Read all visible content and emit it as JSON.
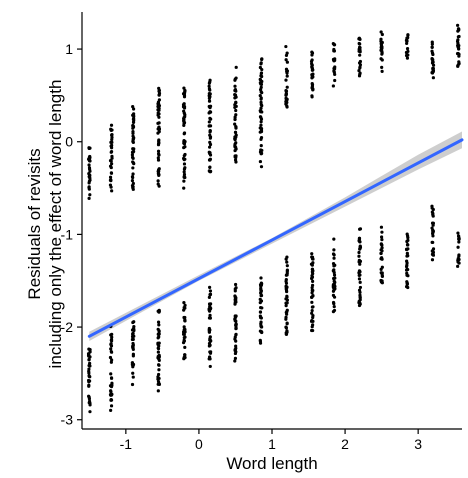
{
  "chart_data": {
    "type": "scatter",
    "xlabel": "Word length",
    "ylabel_lines": [
      "Residuals of revisits",
      "including only the effect of word length"
    ],
    "xlim": [
      -1.6,
      3.6
    ],
    "ylim": [
      -3.1,
      1.4
    ],
    "x_ticks": [
      -1,
      0,
      1,
      2,
      3
    ],
    "y_ticks": [
      -3,
      -2,
      -1,
      0,
      1
    ],
    "x_tick_labels": [
      "-1",
      "0",
      "1",
      "2",
      "3"
    ],
    "y_tick_labels": [
      "-3",
      "-2",
      "-1",
      "0",
      "1"
    ],
    "grid": false,
    "legend": "none",
    "colors": {
      "points": "#000000",
      "fit_line": "#3366ff",
      "confidence_band": "#bdbdbd",
      "axis": "#000000"
    },
    "point_columns": [
      {
        "x": -1.5,
        "bands": [
          [
            -0.65,
            0.05
          ],
          [
            -3.0,
            -2.15
          ]
        ]
      },
      {
        "x": -1.2,
        "bands": [
          [
            -0.55,
            0.25
          ],
          [
            -2.9,
            -1.95
          ]
        ]
      },
      {
        "x": -0.9,
        "bands": [
          [
            -0.65,
            0.5
          ],
          [
            -2.65,
            -1.85
          ]
        ]
      },
      {
        "x": -0.55,
        "bands": [
          [
            -0.55,
            0.72
          ],
          [
            -2.75,
            -1.7
          ]
        ]
      },
      {
        "x": -0.2,
        "bands": [
          [
            -0.55,
            0.72
          ],
          [
            -2.45,
            -1.65
          ]
        ]
      },
      {
        "x": 0.15,
        "bands": [
          [
            -0.45,
            0.8
          ],
          [
            -2.45,
            -1.5
          ]
        ]
      },
      {
        "x": 0.5,
        "bands": [
          [
            -0.35,
            0.85
          ],
          [
            -2.5,
            -1.45
          ]
        ]
      },
      {
        "x": 0.85,
        "bands": [
          [
            -0.3,
            1.05
          ],
          [
            -2.3,
            -1.4
          ]
        ]
      },
      {
        "x": 1.2,
        "bands": [
          [
            0.3,
            1.05
          ],
          [
            -2.2,
            -1.15
          ]
        ]
      },
      {
        "x": 1.55,
        "bands": [
          [
            0.4,
            1.1
          ],
          [
            -2.15,
            -1.1
          ]
        ]
      },
      {
        "x": 1.85,
        "bands": [
          [
            0.6,
            1.1
          ],
          [
            -1.95,
            -1.05
          ]
        ]
      },
      {
        "x": 2.2,
        "bands": [
          [
            0.65,
            1.2
          ],
          [
            -1.85,
            -0.9
          ]
        ]
      },
      {
        "x": 2.5,
        "bands": [
          [
            0.75,
            1.25
          ],
          [
            -1.6,
            -0.9
          ]
        ]
      },
      {
        "x": 2.85,
        "bands": [
          [
            0.85,
            1.2
          ],
          [
            -1.65,
            -0.9
          ]
        ]
      },
      {
        "x": 3.2,
        "bands": [
          [
            0.6,
            1.2
          ],
          [
            -1.3,
            -0.6
          ]
        ]
      },
      {
        "x": 3.55,
        "bands": [
          [
            0.75,
            1.35
          ],
          [
            -1.35,
            -0.95
          ]
        ]
      }
    ],
    "fit_line": {
      "x": [
        -1.5,
        3.6
      ],
      "y": [
        -2.1,
        0.02
      ]
    },
    "confidence_band": {
      "x": [
        -1.5,
        0.0,
        1.0,
        2.0,
        3.0,
        3.6
      ],
      "lower": [
        -2.15,
        -1.5,
        -1.1,
        -0.7,
        -0.3,
        -0.07
      ],
      "upper": [
        -2.05,
        -1.44,
        -1.04,
        -0.6,
        -0.14,
        0.11
      ]
    }
  }
}
